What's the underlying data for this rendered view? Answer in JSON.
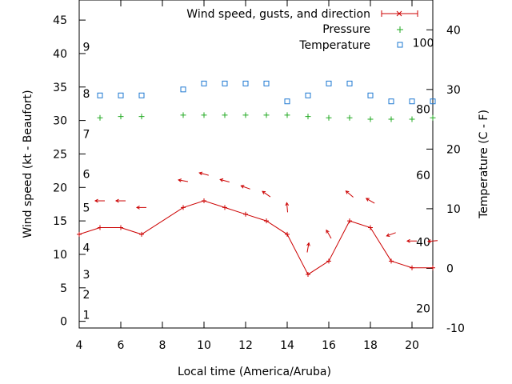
{
  "chart_data": {
    "type": "line",
    "xlabel": "Local time (America/Aruba)",
    "ylabel_left": "Wind speed (kt - Beaufort)",
    "ylabel_right": "Temperature (C - F)",
    "xlim": [
      4,
      21
    ],
    "ylim_left": [
      -1,
      48
    ],
    "ylim_right": [
      -10,
      45
    ],
    "x_ticks": [
      4,
      6,
      8,
      10,
      12,
      14,
      16,
      18,
      20
    ],
    "y_ticks_left": [
      0,
      5,
      10,
      15,
      20,
      25,
      30,
      35,
      40,
      45
    ],
    "y_ticks_right": [
      -10,
      0,
      10,
      20,
      30,
      40
    ],
    "beaufort_labels": [
      {
        "label": "1",
        "kt": 1
      },
      {
        "label": "2",
        "kt": 4
      },
      {
        "label": "3",
        "kt": 7
      },
      {
        "label": "4",
        "kt": 11
      },
      {
        "label": "5",
        "kt": 17
      },
      {
        "label": "6",
        "kt": 22
      },
      {
        "label": "7",
        "kt": 28
      },
      {
        "label": "8",
        "kt": 34
      },
      {
        "label": "9",
        "kt": 41
      }
    ],
    "fahrenheit_labels": [
      {
        "label": "20",
        "temp_c": -6.7
      },
      {
        "label": "40",
        "temp_c": 4.4
      },
      {
        "label": "60",
        "temp_c": 15.6
      },
      {
        "label": "80",
        "temp_c": 26.7
      },
      {
        "label": "100",
        "temp_c": 37.8
      }
    ],
    "legend": [
      {
        "name": "Wind speed, gusts, and direction",
        "color": "#cc0000"
      },
      {
        "name": "Pressure",
        "color": "#22aa22"
      },
      {
        "name": "Temperature",
        "color": "#1e78d2"
      }
    ],
    "wind_speed": {
      "x": [
        4,
        5,
        6,
        7,
        9,
        10,
        11,
        12,
        13,
        14,
        15,
        16,
        17,
        18,
        19,
        20,
        21
      ],
      "y": [
        13,
        14,
        14,
        13,
        17,
        18,
        17,
        16,
        15,
        13,
        7,
        9,
        15,
        14,
        9,
        8,
        8
      ]
    },
    "wind_direction": [
      {
        "x": 5,
        "kt": 18,
        "angle_deg": 0
      },
      {
        "x": 6,
        "kt": 18,
        "angle_deg": 0
      },
      {
        "x": 7,
        "kt": 17,
        "angle_deg": 0
      },
      {
        "x": 9,
        "kt": 21,
        "angle_deg": 10
      },
      {
        "x": 10,
        "kt": 22,
        "angle_deg": 15
      },
      {
        "x": 11,
        "kt": 21,
        "angle_deg": 15
      },
      {
        "x": 12,
        "kt": 20,
        "angle_deg": 20
      },
      {
        "x": 13,
        "kt": 19,
        "angle_deg": 35
      },
      {
        "x": 14,
        "kt": 17,
        "angle_deg": 85
      },
      {
        "x": 15,
        "kt": 11,
        "angle_deg": 100
      },
      {
        "x": 16,
        "kt": 13,
        "angle_deg": 60
      },
      {
        "x": 17,
        "kt": 19,
        "angle_deg": 40
      },
      {
        "x": 18,
        "kt": 18,
        "angle_deg": 30
      },
      {
        "x": 19,
        "kt": 13,
        "angle_deg": -20
      },
      {
        "x": 20,
        "kt": 12,
        "angle_deg": 0
      },
      {
        "x": 21,
        "kt": 12,
        "angle_deg": -5
      }
    ],
    "pressure": {
      "x": [
        5,
        6,
        7,
        9,
        10,
        11,
        12,
        13,
        14,
        15,
        16,
        17,
        18,
        19,
        20,
        21
      ],
      "y_kt": [
        30.4,
        30.6,
        30.6,
        30.8,
        30.8,
        30.8,
        30.8,
        30.8,
        30.8,
        30.6,
        30.4,
        30.4,
        30.2,
        30.2,
        30.2,
        30.4
      ]
    },
    "temperature": {
      "x": [
        5,
        6,
        7,
        9,
        10,
        11,
        12,
        13,
        14,
        15,
        16,
        17,
        18,
        19,
        20,
        21
      ],
      "y": [
        29,
        29,
        29,
        30,
        31,
        31,
        31,
        31,
        28,
        29,
        31,
        31,
        29,
        28,
        28,
        28
      ]
    },
    "colors": {
      "wind": "#cc0000",
      "pressure": "#22aa22",
      "temperature": "#1e78d2",
      "axis": "#000000"
    }
  }
}
